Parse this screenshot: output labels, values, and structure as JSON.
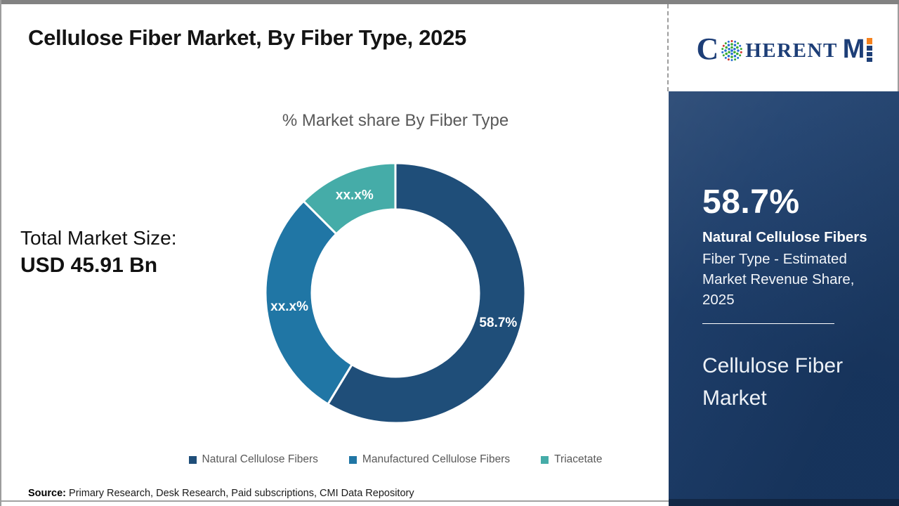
{
  "page": {
    "title": "Cellulose Fiber Market, By Fiber Type, 2025",
    "source_label": "Source:",
    "source_text": " Primary Research, Desk Research, Paid subscriptions, CMI Data Repository"
  },
  "logo": {
    "part1": "C",
    "part2": "HERENT",
    "part3": "M",
    "navy": "#1d3e77",
    "orange": "#f5821f",
    "globe_green": "#3aaa35",
    "globe_blue": "#2a6fd1",
    "globe_red": "#d1342b"
  },
  "left_panel": {
    "total_label": "Total Market Size:",
    "total_value": "USD 45.91 Bn"
  },
  "chart_data": {
    "type": "pie",
    "donut": true,
    "title": "% Market share By Fiber Type",
    "legend_position": "bottom",
    "slices": [
      {
        "id": "natural-cellulose-fibers",
        "label": "Natural Cellulose Fibers",
        "display_label": "58.7%",
        "value": 58.7,
        "color": "#1f4e79"
      },
      {
        "id": "manufactured-cellulose-fibers",
        "label": "Manufactured Cellulose Fibers",
        "display_label": "xx.x%",
        "value": 28.8,
        "color": "#2076a5"
      },
      {
        "id": "triacetate",
        "label": "Triacetate",
        "display_label": "xx.x%",
        "value": 12.5,
        "color": "#45aca8"
      }
    ]
  },
  "sidebar": {
    "stat_value": "58.7%",
    "stat_bold_line": "Natural Cellulose Fibers",
    "stat_desc": "Fiber Type - Estimated Market Revenue Share, 2025",
    "market_name": "Cellulose Fiber Market",
    "bg_color": "#1b3e6e"
  }
}
